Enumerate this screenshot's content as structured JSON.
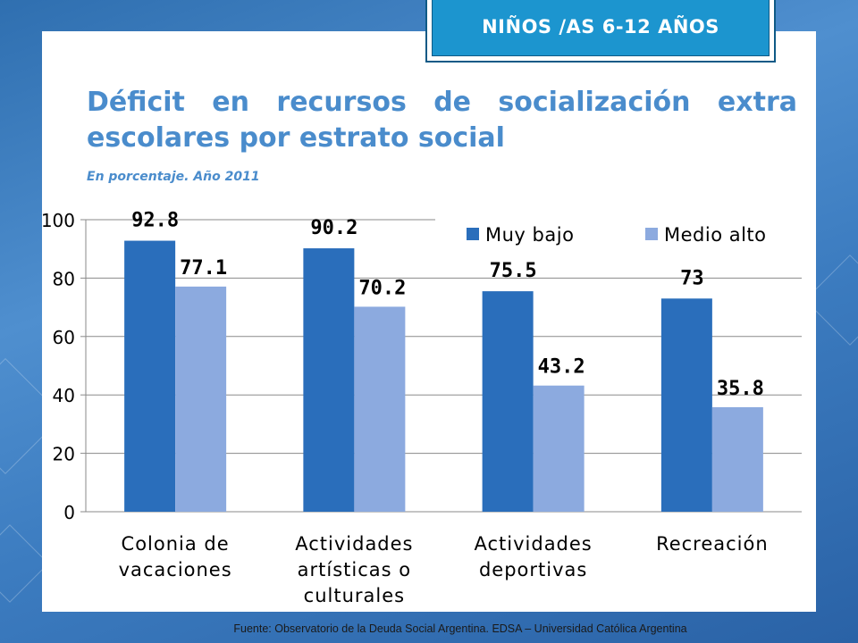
{
  "badge": "NIÑOS /AS 6-12 AÑOS",
  "title": "Déficit en recursos de socialización extra escolares por estrato social",
  "subtitle": "En porcentaje. Año 2011",
  "source": "Fuente:  Observatorio de  la Deuda Social Argentina. EDSA  – Universidad Católica Argentina",
  "chart_data": {
    "type": "bar",
    "categories": [
      [
        "Colonia de",
        "vacaciones"
      ],
      [
        "Actividades",
        "artísticas o",
        "culturales"
      ],
      [
        "Actividades",
        "deportivas"
      ],
      [
        "Recreación"
      ]
    ],
    "series": [
      {
        "name": "Muy bajo",
        "color": "#2a6ebb",
        "values": [
          92.8,
          90.2,
          75.5,
          73
        ]
      },
      {
        "name": "Medio alto",
        "color": "#8caadf",
        "values": [
          77.1,
          70.2,
          43.2,
          35.8
        ]
      }
    ],
    "data_labels": [
      [
        "92.8",
        "90.2",
        "75.5",
        "73"
      ],
      [
        "77.1",
        "70.2",
        "43.2",
        "35.8"
      ]
    ],
    "ylim": [
      0,
      100
    ],
    "yticks": [
      0,
      20,
      40,
      60,
      80,
      100
    ],
    "grid": true,
    "legend": "top-right"
  }
}
